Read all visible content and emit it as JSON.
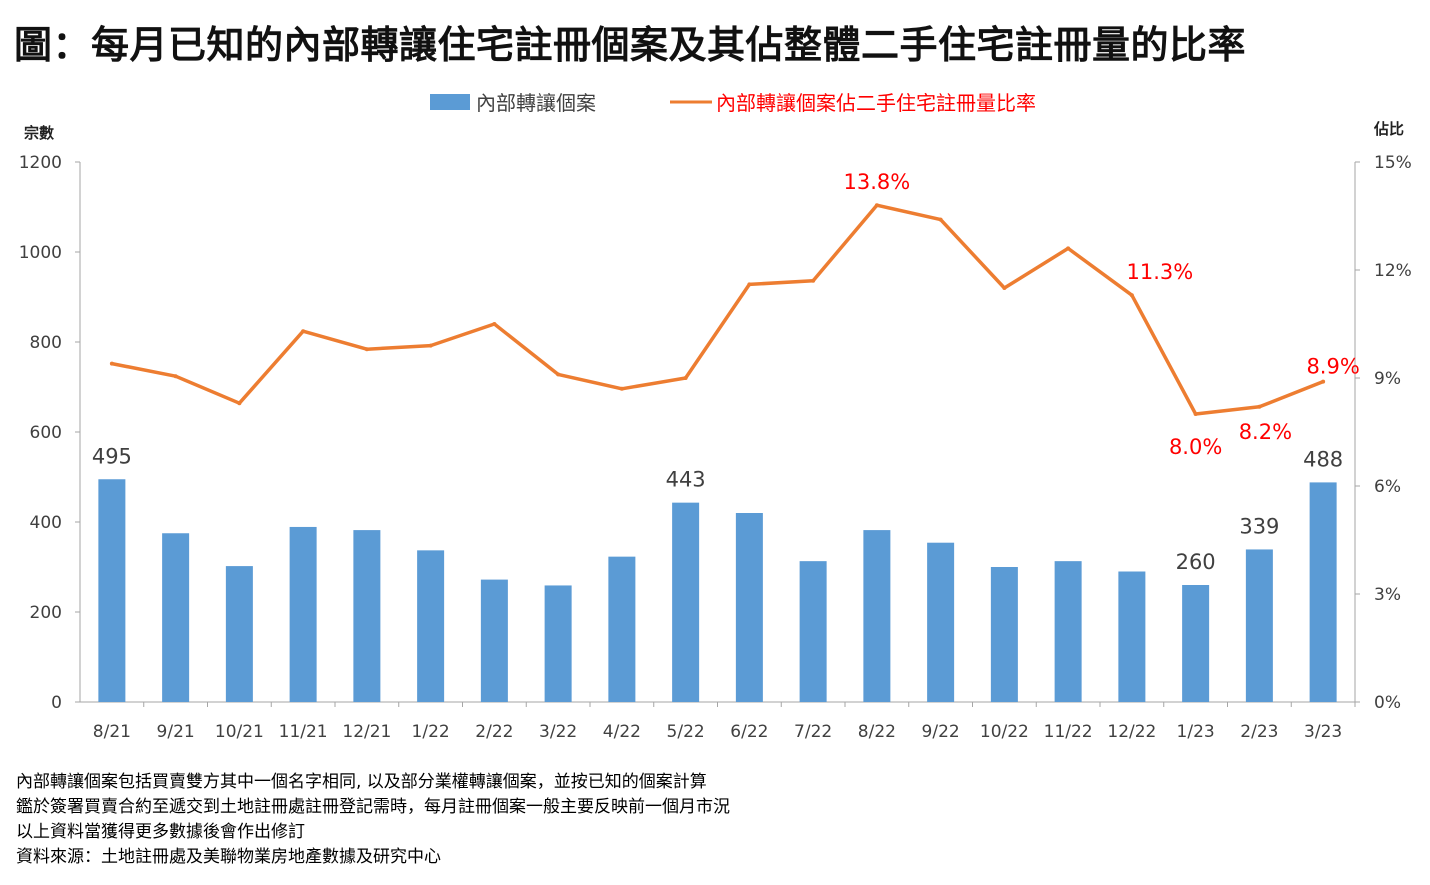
{
  "title": "圖：每月已知的內部轉讓住宅註冊個案及其佔整體二手住宅註冊量的比率",
  "colors": {
    "bar": "#5b9bd5",
    "line": "#ed7d31",
    "ratio_label": "#ff0000",
    "count_label": "#404040",
    "axis_text": "#404040"
  },
  "chart_data": {
    "type": "bar",
    "categories": [
      "8/21",
      "9/21",
      "10/21",
      "11/21",
      "12/21",
      "1/22",
      "2/22",
      "3/22",
      "4/22",
      "5/22",
      "6/22",
      "7/22",
      "8/22",
      "9/22",
      "10/22",
      "11/22",
      "12/22",
      "1/23",
      "2/23",
      "3/23"
    ],
    "series": [
      {
        "name": "內部轉讓個案",
        "type": "bar",
        "axis": "left",
        "values": [
          495,
          375,
          302,
          389,
          382,
          337,
          272,
          259,
          323,
          443,
          420,
          313,
          382,
          354,
          300,
          313,
          290,
          260,
          339,
          488
        ]
      },
      {
        "name": "內部轉讓個案佔二手住宅註冊量比率",
        "type": "line",
        "axis": "right",
        "values": [
          9.4,
          9.05,
          8.3,
          10.3,
          9.8,
          9.9,
          10.5,
          9.1,
          8.7,
          9.0,
          11.6,
          11.7,
          13.8,
          13.4,
          11.5,
          12.6,
          11.3,
          8.0,
          8.2,
          8.9
        ]
      }
    ],
    "bar_labels": [
      {
        "index": 0,
        "text": "495"
      },
      {
        "index": 9,
        "text": "443"
      },
      {
        "index": 17,
        "text": "260"
      },
      {
        "index": 18,
        "text": "339"
      },
      {
        "index": 19,
        "text": "488"
      }
    ],
    "line_labels": [
      {
        "index": 12,
        "text": "13.8%"
      },
      {
        "index": 16,
        "text": "11.3%"
      },
      {
        "index": 17,
        "text": "8.0%"
      },
      {
        "index": 18,
        "text": "8.2%"
      },
      {
        "index": 19,
        "text": "8.9%"
      }
    ],
    "y_left_label": "宗數",
    "y_right_label": "佔比",
    "y_left_ticks": [
      "0",
      "200",
      "400",
      "600",
      "800",
      "1000",
      "1200"
    ],
    "y_right_ticks": [
      "0%",
      "3%",
      "6%",
      "9%",
      "12%",
      "15%"
    ],
    "ylim_left": [
      0,
      1200
    ],
    "ylim_right": [
      0,
      15
    ],
    "grid": false,
    "legend_position": "top"
  },
  "notes": [
    "內部轉讓個案包括買賣雙方其中一個名字相同, 以及部分業權轉讓個案，並按已知的個案計算",
    "鑑於簽署買賣合約至遞交到土地註冊處註冊登記需時，每月註冊個案一般主要反映前一個月市況",
    "以上資料當獲得更多數據後會作出修訂",
    "資料來源：土地註冊處及美聯物業房地產數據及研究中心"
  ]
}
